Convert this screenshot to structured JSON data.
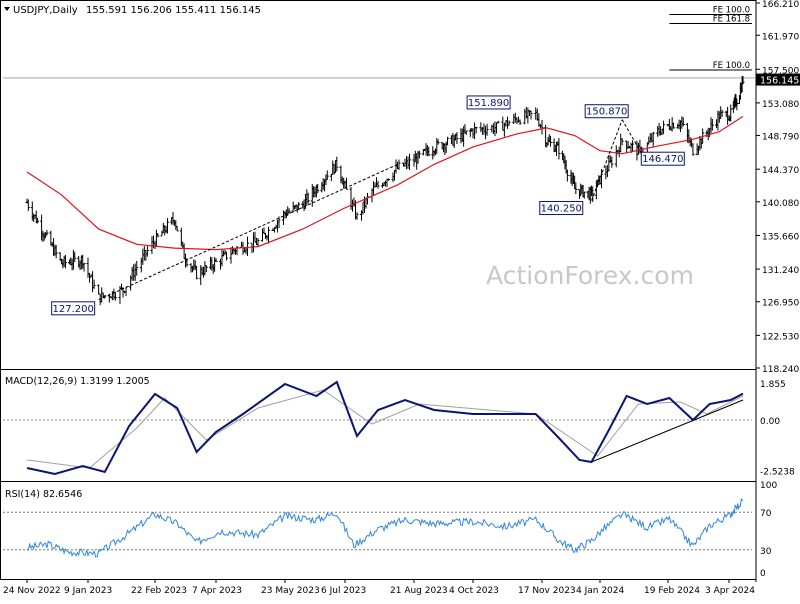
{
  "header": {
    "symbol": "USDJPY,Daily",
    "ohlc": "155.591 156.206 155.411 156.145"
  },
  "watermark": "ActionForex.com",
  "colors": {
    "price_bars": "#000000",
    "ma": "#e0141e",
    "macd": "#0a1473",
    "macd_signal": "#a0a0a0",
    "rsi": "#2f87e0",
    "trendline": "#000000",
    "price_tag_bg": "#000000",
    "label_border": "#0a1473"
  },
  "chart_data": [
    {
      "type": "ohlc",
      "name": "price",
      "y_axis_ticks": [
        "166.210",
        "161.970",
        "157.500",
        "153.080",
        "148.790",
        "144.370",
        "140.080",
        "135.660",
        "131.240",
        "126.950",
        "122.530",
        "118.240"
      ],
      "ylim": [
        118.24,
        166.21
      ],
      "last_price": "156.145",
      "x_axis_ticks": [
        "24 Nov 2022",
        "9 Jan 2023",
        "22 Feb 2023",
        "7 Apr 2023",
        "23 May 2023",
        "6 Jul 2023",
        "21 Aug 2023",
        "4 Oct 2023",
        "17 Nov 2023",
        "4 Jan 2024",
        "19 Feb 2024",
        "3 Apr 2024"
      ],
      "close_path": [
        {
          "date": "2022-11-24",
          "value": 140.0
        },
        {
          "date": "2022-12-05",
          "value": 136.5
        },
        {
          "date": "2022-12-20",
          "value": 132.0
        },
        {
          "date": "2023-01-05",
          "value": 132.5
        },
        {
          "date": "2023-01-16",
          "value": 127.5
        },
        {
          "date": "2023-02-01",
          "value": 128.5
        },
        {
          "date": "2023-02-10",
          "value": 131.5
        },
        {
          "date": "2023-02-20",
          "value": 134.5
        },
        {
          "date": "2023-03-08",
          "value": 137.9
        },
        {
          "date": "2023-03-15",
          "value": 133.0
        },
        {
          "date": "2023-03-24",
          "value": 130.6
        },
        {
          "date": "2023-04-07",
          "value": 132.1
        },
        {
          "date": "2023-04-21",
          "value": 134.0
        },
        {
          "date": "2023-05-05",
          "value": 134.8
        },
        {
          "date": "2023-05-23",
          "value": 138.6
        },
        {
          "date": "2023-06-05",
          "value": 139.7
        },
        {
          "date": "2023-06-20",
          "value": 143.0
        },
        {
          "date": "2023-06-30",
          "value": 145.0
        },
        {
          "date": "2023-07-14",
          "value": 138.0
        },
        {
          "date": "2023-07-24",
          "value": 141.5
        },
        {
          "date": "2023-08-10",
          "value": 144.5
        },
        {
          "date": "2023-08-21",
          "value": 145.5
        },
        {
          "date": "2023-09-05",
          "value": 147.3
        },
        {
          "date": "2023-09-20",
          "value": 148.2
        },
        {
          "date": "2023-10-04",
          "value": 149.5
        },
        {
          "date": "2023-10-20",
          "value": 149.9
        },
        {
          "date": "2023-11-01",
          "value": 151.0
        },
        {
          "date": "2023-11-13",
          "value": 151.6
        },
        {
          "date": "2023-11-21",
          "value": 148.0
        },
        {
          "date": "2023-12-01",
          "value": 147.0
        },
        {
          "date": "2023-12-14",
          "value": 141.8
        },
        {
          "date": "2023-12-28",
          "value": 141.0
        },
        {
          "date": "2024-01-10",
          "value": 144.8
        },
        {
          "date": "2024-01-19",
          "value": 148.1
        },
        {
          "date": "2024-02-01",
          "value": 146.5
        },
        {
          "date": "2024-02-12",
          "value": 149.3
        },
        {
          "date": "2024-02-20",
          "value": 150.2
        },
        {
          "date": "2024-02-28",
          "value": 150.6
        },
        {
          "date": "2024-03-08",
          "value": 146.9
        },
        {
          "date": "2024-03-18",
          "value": 149.2
        },
        {
          "date": "2024-03-27",
          "value": 151.4
        },
        {
          "date": "2024-04-05",
          "value": 151.6
        },
        {
          "date": "2024-04-15",
          "value": 154.4
        },
        {
          "date": "2024-04-19",
          "value": 156.145
        }
      ],
      "moving_average": [
        {
          "date": "2022-11-24",
          "value": 144.0
        },
        {
          "date": "2022-12-20",
          "value": 141.0
        },
        {
          "date": "2023-01-16",
          "value": 136.5
        },
        {
          "date": "2023-02-10",
          "value": 134.5
        },
        {
          "date": "2023-03-08",
          "value": 134.0
        },
        {
          "date": "2023-04-07",
          "value": 133.8
        },
        {
          "date": "2023-05-05",
          "value": 134.2
        },
        {
          "date": "2023-06-05",
          "value": 136.5
        },
        {
          "date": "2023-07-05",
          "value": 139.2
        },
        {
          "date": "2023-08-10",
          "value": 142.3
        },
        {
          "date": "2023-09-05",
          "value": 145.0
        },
        {
          "date": "2023-10-04",
          "value": 147.3
        },
        {
          "date": "2023-11-01",
          "value": 149.0
        },
        {
          "date": "2023-11-21",
          "value": 149.8
        },
        {
          "date": "2023-12-14",
          "value": 148.8
        },
        {
          "date": "2024-01-04",
          "value": 146.8
        },
        {
          "date": "2024-01-19",
          "value": 146.4
        },
        {
          "date": "2024-02-12",
          "value": 147.4
        },
        {
          "date": "2024-03-08",
          "value": 148.3
        },
        {
          "date": "2024-03-27",
          "value": 149.3
        },
        {
          "date": "2024-04-19",
          "value": 151.3
        }
      ],
      "fib_lines": [
        {
          "label": "FE 100.0",
          "value": 164.7,
          "from": "2024-02-20"
        },
        {
          "label": "FE 161.8",
          "value": 164.7,
          "from": "2024-02-20",
          "offset": 1
        },
        {
          "label": "FE 100.0",
          "value": 157.4,
          "from": "2024-02-20"
        }
      ],
      "hline": {
        "value": 156.1
      },
      "annotations": [
        {
          "text": "127.200",
          "date": "2023-01-16",
          "value": 127.2
        },
        {
          "text": "151.890",
          "date": "2023-10-20",
          "value": 151.89
        },
        {
          "text": "140.250",
          "date": "2023-12-05",
          "value": 140.25
        },
        {
          "text": "150.870",
          "date": "2024-01-19",
          "value": 150.87
        },
        {
          "text": "146.470",
          "date": "2024-02-05",
          "value": 146.47
        }
      ],
      "trendlines": [
        [
          {
            "date": "2023-01-16",
            "value": 127.2
          },
          {
            "date": "2023-08-10",
            "value": 145.0
          }
        ],
        [
          {
            "date": "2023-12-28",
            "value": 140.25
          },
          {
            "date": "2024-01-19",
            "value": 150.87
          }
        ],
        [
          {
            "date": "2024-01-19",
            "value": 150.87
          },
          {
            "date": "2024-02-01",
            "value": 146.47
          }
        ]
      ]
    },
    {
      "type": "line",
      "name": "MACD",
      "label": "MACD(12,26,9) 1.3199 1.2005",
      "y_axis_ticks": [
        "1.855",
        "0.00",
        "-2.5238"
      ],
      "ylim": [
        -3.0,
        2.4
      ],
      "series": [
        {
          "name": "macd",
          "values": [
            {
              "date": "2022-11-24",
              "value": -2.4
            },
            {
              "date": "2022-12-15",
              "value": -2.7
            },
            {
              "date": "2023-01-05",
              "value": -2.3
            },
            {
              "date": "2023-01-20",
              "value": -2.6
            },
            {
              "date": "2023-02-05",
              "value": -0.3
            },
            {
              "date": "2023-02-22",
              "value": 1.3
            },
            {
              "date": "2023-03-10",
              "value": 0.6
            },
            {
              "date": "2023-03-24",
              "value": -1.6
            },
            {
              "date": "2023-04-07",
              "value": -0.6
            },
            {
              "date": "2023-04-25",
              "value": 0.3
            },
            {
              "date": "2023-05-23",
              "value": 1.8
            },
            {
              "date": "2023-06-15",
              "value": 1.2
            },
            {
              "date": "2023-06-30",
              "value": 1.9
            },
            {
              "date": "2023-07-14",
              "value": -0.8
            },
            {
              "date": "2023-07-28",
              "value": 0.5
            },
            {
              "date": "2023-08-15",
              "value": 1.0
            },
            {
              "date": "2023-09-05",
              "value": 0.5
            },
            {
              "date": "2023-10-04",
              "value": 0.3
            },
            {
              "date": "2023-11-13",
              "value": 0.3
            },
            {
              "date": "2023-12-01",
              "value": -0.9
            },
            {
              "date": "2023-12-18",
              "value": -2.0
            },
            {
              "date": "2023-12-28",
              "value": -2.1
            },
            {
              "date": "2024-01-10",
              "value": -0.5
            },
            {
              "date": "2024-01-22",
              "value": 1.2
            },
            {
              "date": "2024-02-05",
              "value": 0.8
            },
            {
              "date": "2024-02-20",
              "value": 1.1
            },
            {
              "date": "2024-03-08",
              "value": 0.0
            },
            {
              "date": "2024-03-20",
              "value": 0.8
            },
            {
              "date": "2024-04-05",
              "value": 1.0
            },
            {
              "date": "2024-04-19",
              "value": 1.3199
            }
          ]
        },
        {
          "name": "signal",
          "values": [
            {
              "date": "2022-11-24",
              "value": -2.0
            },
            {
              "date": "2023-01-10",
              "value": -2.4
            },
            {
              "date": "2023-02-10",
              "value": -0.4
            },
            {
              "date": "2023-03-01",
              "value": 1.1
            },
            {
              "date": "2023-03-31",
              "value": -1.0
            },
            {
              "date": "2023-05-05",
              "value": 0.6
            },
            {
              "date": "2023-06-20",
              "value": 1.5
            },
            {
              "date": "2023-07-24",
              "value": -0.2
            },
            {
              "date": "2023-08-25",
              "value": 0.8
            },
            {
              "date": "2023-11-13",
              "value": 0.3
            },
            {
              "date": "2024-01-02",
              "value": -1.8
            },
            {
              "date": "2024-01-30",
              "value": 0.8
            },
            {
              "date": "2024-02-28",
              "value": 0.9
            },
            {
              "date": "2024-03-18",
              "value": 0.3
            },
            {
              "date": "2024-04-19",
              "value": 1.2005
            }
          ]
        }
      ],
      "trendline": [
        {
          "date": "2023-12-28",
          "value": -2.1
        },
        {
          "date": "2024-04-19",
          "value": 1.0
        }
      ]
    },
    {
      "type": "line",
      "name": "RSI",
      "label": "RSI(14) 82.6546",
      "y_axis_ticks": [
        "100",
        "70",
        "30",
        "0"
      ],
      "ylim": [
        0,
        100
      ],
      "levels": [
        70,
        30
      ],
      "series": [
        {
          "name": "rsi",
          "values": [
            {
              "date": "2022-11-24",
              "value": 32
            },
            {
              "date": "2022-12-10",
              "value": 36
            },
            {
              "date": "2022-12-25",
              "value": 28
            },
            {
              "date": "2023-01-16",
              "value": 26
            },
            {
              "date": "2023-02-05",
              "value": 48
            },
            {
              "date": "2023-02-22",
              "value": 68
            },
            {
              "date": "2023-03-10",
              "value": 58
            },
            {
              "date": "2023-03-24",
              "value": 38
            },
            {
              "date": "2023-04-10",
              "value": 50
            },
            {
              "date": "2023-05-05",
              "value": 46
            },
            {
              "date": "2023-05-23",
              "value": 66
            },
            {
              "date": "2023-06-15",
              "value": 62
            },
            {
              "date": "2023-06-30",
              "value": 70
            },
            {
              "date": "2023-07-12",
              "value": 35
            },
            {
              "date": "2023-07-28",
              "value": 52
            },
            {
              "date": "2023-08-15",
              "value": 62
            },
            {
              "date": "2023-09-05",
              "value": 58
            },
            {
              "date": "2023-10-04",
              "value": 60
            },
            {
              "date": "2023-10-25",
              "value": 55
            },
            {
              "date": "2023-11-13",
              "value": 62
            },
            {
              "date": "2023-12-01",
              "value": 40
            },
            {
              "date": "2023-12-14",
              "value": 30
            },
            {
              "date": "2023-12-28",
              "value": 40
            },
            {
              "date": "2024-01-19",
              "value": 68
            },
            {
              "date": "2024-02-05",
              "value": 54
            },
            {
              "date": "2024-02-20",
              "value": 63
            },
            {
              "date": "2024-03-08",
              "value": 34
            },
            {
              "date": "2024-03-20",
              "value": 56
            },
            {
              "date": "2024-04-05",
              "value": 68
            },
            {
              "date": "2024-04-19",
              "value": 82.6546
            }
          ]
        }
      ]
    }
  ]
}
